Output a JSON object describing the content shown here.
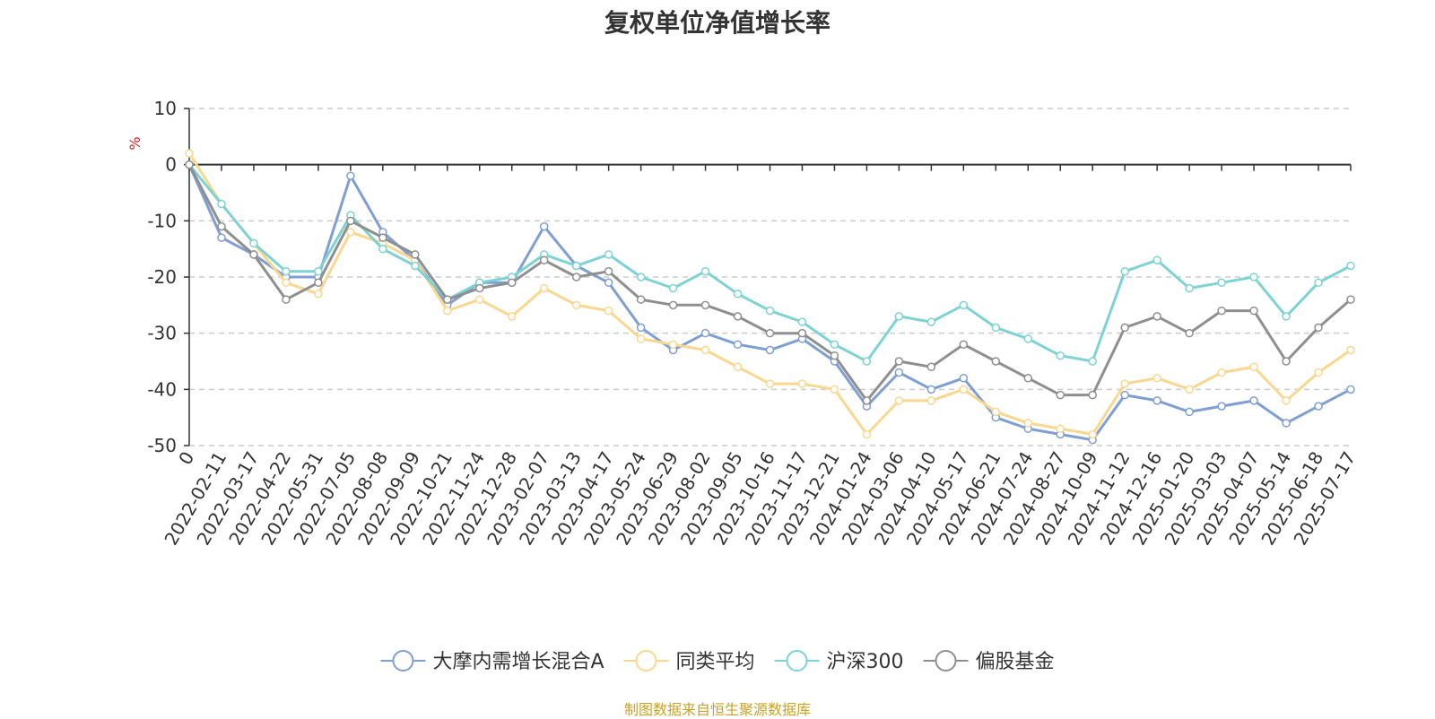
{
  "chart_data": {
    "type": "line",
    "title": "复权单位净值增长率",
    "ylabel": "%",
    "ylim": [
      -50,
      10
    ],
    "yticks": [
      10,
      0,
      -10,
      -20,
      -30,
      -40,
      -50
    ],
    "grid": true,
    "legend_position": "bottom",
    "source_note": "制图数据来自恒生聚源数据库",
    "x": [
      "0",
      "2022-02-11",
      "2022-03-17",
      "2022-04-22",
      "2022-05-31",
      "2022-07-05",
      "2022-08-08",
      "2022-09-09",
      "2022-10-21",
      "2022-11-24",
      "2022-12-28",
      "2023-02-07",
      "2023-03-13",
      "2023-04-17",
      "2023-05-24",
      "2023-06-29",
      "2023-08-02",
      "2023-09-05",
      "2023-10-16",
      "2023-11-17",
      "2023-12-21",
      "2024-01-24",
      "2024-03-06",
      "2024-04-10",
      "2024-05-17",
      "2024-06-21",
      "2024-07-24",
      "2024-08-27",
      "2024-10-09",
      "2024-11-12",
      "2024-12-16",
      "2025-01-20",
      "2025-03-03",
      "2025-04-07",
      "2025-05-14",
      "2025-06-18",
      "2025-07-17"
    ],
    "series": [
      {
        "name": "大摩内需增长混合A",
        "color": "#7f9fd3",
        "values": [
          0,
          -13,
          -16,
          -20,
          -20,
          -2,
          -12,
          -17,
          -25,
          -21,
          -21,
          -11,
          -18,
          -21,
          -29,
          -33,
          -30,
          -32,
          -33,
          -31,
          -35,
          -43,
          -37,
          -40,
          -38,
          -45,
          -47,
          -48,
          -49,
          -41,
          -42,
          -44,
          -43,
          -42,
          -46,
          -43,
          -40
        ]
      },
      {
        "name": "同类平均",
        "color": "#f9d78f",
        "values": [
          2,
          -7,
          -14,
          -21,
          -23,
          -12,
          -14,
          -17,
          -26,
          -24,
          -27,
          -22,
          -25,
          -26,
          -31,
          -32,
          -33,
          -36,
          -39,
          -39,
          -40,
          -48,
          -42,
          -42,
          -40,
          -44,
          -46,
          -47,
          -48,
          -39,
          -38,
          -40,
          -37,
          -36,
          -42,
          -37,
          -33
        ]
      },
      {
        "name": "沪深300",
        "color": "#7dd3d3",
        "values": [
          0,
          -7,
          -14,
          -19,
          -19,
          -9,
          -15,
          -18,
          -24,
          -21,
          -20,
          -16,
          -18,
          -16,
          -20,
          -22,
          -19,
          -23,
          -26,
          -28,
          -32,
          -35,
          -27,
          -28,
          -25,
          -29,
          -31,
          -34,
          -35,
          -19,
          -17,
          -22,
          -21,
          -20,
          -27,
          -21,
          -18
        ]
      },
      {
        "name": "偏股基金",
        "color": "#8f8f8f",
        "values": [
          0,
          -11,
          -16,
          -24,
          -21,
          -10,
          -13,
          -16,
          -24,
          -22,
          -21,
          -17,
          -20,
          -19,
          -24,
          -25,
          -25,
          -27,
          -30,
          -30,
          -34,
          -42,
          -35,
          -36,
          -32,
          -35,
          -38,
          -41,
          -41,
          -29,
          -27,
          -30,
          -26,
          -26,
          -35,
          -29,
          -24
        ]
      }
    ]
  }
}
